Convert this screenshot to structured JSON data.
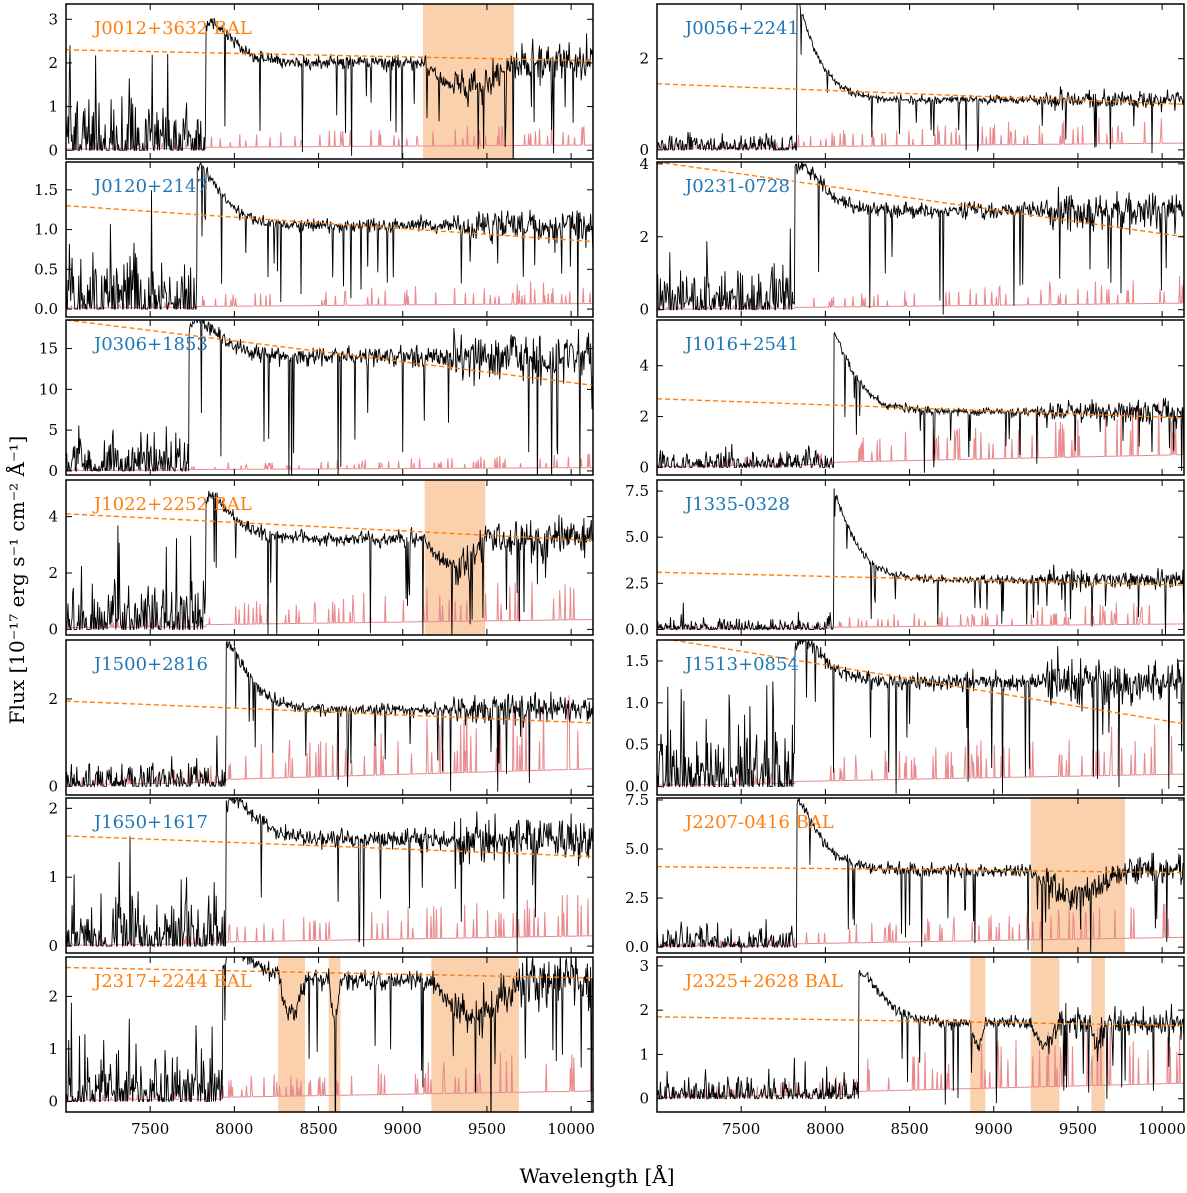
{
  "figure": {
    "xlabel": "Wavelength [Å]",
    "ylabel": "Flux [10⁻¹⁷ erg s⁻¹ cm⁻² Å⁻¹]"
  },
  "colors": {
    "spectrum": "#000000",
    "error": "#e8898d",
    "continuum": "#ff7f0e",
    "bal_region": "#fbd0ad",
    "label_bal": "#ff7f0e",
    "label_normal": "#1f77b4"
  },
  "chart_data": [
    {
      "type": "line",
      "title": "J0012+3632 BAL",
      "bal": true,
      "xlim": [
        7000,
        10130
      ],
      "ylim": [
        -0.2,
        3.35
      ],
      "yticks": [
        "0",
        "1",
        "2",
        "3"
      ],
      "xticks": [],
      "lya": 7830,
      "peak": 2.8,
      "cont": [
        2.3,
        2.05
      ],
      "plateau": 2.0,
      "lowNoise": 1.1,
      "err": [
        0.05,
        0.12
      ],
      "bal_regions": [
        [
          9120,
          9660
        ]
      ]
    },
    {
      "type": "line",
      "title": "J0056+2241",
      "bal": false,
      "xlim": [
        7000,
        10130
      ],
      "ylim": [
        -0.2,
        3.2
      ],
      "yticks": [
        "0",
        "2"
      ],
      "xticks": [],
      "lya": 7830,
      "peak": 3.4,
      "cont": [
        1.45,
        1.0
      ],
      "plateau": 1.1,
      "lowNoise": 0.3,
      "err": [
        0.04,
        0.15
      ],
      "bal_regions": []
    },
    {
      "type": "line",
      "title": "J0120+2147",
      "bal": false,
      "xlim": [
        7000,
        10130
      ],
      "ylim": [
        -0.1,
        1.85
      ],
      "yticks": [
        "0.0",
        "0.5",
        "1.0",
        "1.5"
      ],
      "xticks": [],
      "lya": 7780,
      "peak": 1.8,
      "cont": [
        1.3,
        0.85
      ],
      "plateau": 1.05,
      "lowNoise": 0.6,
      "err": [
        0.02,
        0.07
      ],
      "bal_regions": []
    },
    {
      "type": "line",
      "title": "J0231-0728",
      "bal": false,
      "xlim": [
        7000,
        10130
      ],
      "ylim": [
        -0.2,
        4.05
      ],
      "yticks": [
        "0",
        "2",
        "4"
      ],
      "xticks": [],
      "lya": 7820,
      "peak": 3.8,
      "cont": [
        4.05,
        2.0
      ],
      "plateau": 2.7,
      "lowNoise": 1.0,
      "err": [
        0.02,
        0.18
      ],
      "bal_regions": []
    },
    {
      "type": "line",
      "title": "J0306+1853",
      "bal": false,
      "xlim": [
        7000,
        10130
      ],
      "ylim": [
        -0.5,
        18.5
      ],
      "yticks": [
        "0",
        "5",
        "10",
        "15"
      ],
      "xticks": [],
      "lya": 7730,
      "peak": 17.0,
      "cont": [
        18.5,
        10.5
      ],
      "plateau": 14.0,
      "lowNoise": 4.0,
      "err": [
        0.1,
        0.4
      ],
      "bal_regions": []
    },
    {
      "type": "line",
      "title": "J1016+2541",
      "bal": false,
      "xlim": [
        7000,
        10130
      ],
      "ylim": [
        -0.3,
        5.8
      ],
      "yticks": [
        "0",
        "2",
        "4"
      ],
      "xticks": [],
      "lya": 8050,
      "peak": 5.3,
      "cont": [
        2.7,
        1.95
      ],
      "plateau": 2.2,
      "lowNoise": 0.6,
      "err": [
        0.05,
        0.5
      ],
      "bal_regions": []
    },
    {
      "type": "line",
      "title": "J1022+2252 BAL",
      "bal": true,
      "xlim": [
        7000,
        10130
      ],
      "ylim": [
        -0.2,
        5.3
      ],
      "yticks": [
        "0",
        "2",
        "4"
      ],
      "xticks": [],
      "lya": 7830,
      "peak": 4.6,
      "cont": [
        4.1,
        3.15
      ],
      "plateau": 3.2,
      "lowNoise": 1.5,
      "err": [
        0.1,
        0.35
      ],
      "bal_regions": [
        [
          9130,
          9490
        ]
      ]
    },
    {
      "type": "line",
      "title": "J1335-0328",
      "bal": false,
      "xlim": [
        7000,
        10130
      ],
      "ylim": [
        -0.3,
        8.1
      ],
      "yticks": [
        "0.0",
        "2.5",
        "5.0",
        "7.5"
      ],
      "xticks": [],
      "lya": 8050,
      "peak": 7.6,
      "cont": [
        3.1,
        2.4
      ],
      "plateau": 2.7,
      "lowNoise": 0.5,
      "err": [
        0.03,
        0.3
      ],
      "bal_regions": []
    },
    {
      "type": "line",
      "title": "J1500+2816",
      "bal": false,
      "xlim": [
        7000,
        10130
      ],
      "ylim": [
        -0.2,
        3.35
      ],
      "yticks": [
        "0",
        "2"
      ],
      "xticks": [],
      "lya": 7950,
      "peak": 3.3,
      "cont": [
        1.95,
        1.45
      ],
      "plateau": 1.75,
      "lowNoise": 0.5,
      "err": [
        0.05,
        0.4
      ],
      "bal_regions": []
    },
    {
      "type": "line",
      "title": "J1513+0854",
      "bal": false,
      "xlim": [
        7000,
        10130
      ],
      "ylim": [
        -0.1,
        1.75
      ],
      "yticks": [
        "0.0",
        "0.5",
        "1.0",
        "1.5"
      ],
      "xticks": [],
      "lya": 7820,
      "peak": 1.65,
      "cont": [
        1.78,
        0.75
      ],
      "plateau": 1.25,
      "lowNoise": 0.65,
      "err": [
        0.03,
        0.15
      ],
      "bal_regions": []
    },
    {
      "type": "line",
      "title": "J1650+1617",
      "bal": false,
      "xlim": [
        7000,
        10130
      ],
      "ylim": [
        -0.1,
        2.15
      ],
      "yticks": [
        "0",
        "1",
        "2"
      ],
      "xticks": [],
      "lya": 7950,
      "peak": 2.0,
      "cont": [
        1.6,
        1.3
      ],
      "plateau": 1.55,
      "lowNoise": 0.6,
      "err": [
        0.02,
        0.15
      ],
      "bal_regions": []
    },
    {
      "type": "line",
      "title": "J2207-0416 BAL",
      "bal": true,
      "xlim": [
        7000,
        10130
      ],
      "ylim": [
        -0.3,
        7.6
      ],
      "yticks": [
        "0.0",
        "2.5",
        "5.0",
        "7.5"
      ],
      "xticks": [],
      "lya": 7830,
      "peak": 7.5,
      "cont": [
        4.1,
        3.8
      ],
      "plateau": 3.9,
      "lowNoise": 1.0,
      "err": [
        0.05,
        0.5
      ],
      "bal_regions": [
        [
          9220,
          9780
        ]
      ]
    },
    {
      "type": "line",
      "title": "J2317+2244 BAL",
      "bal": true,
      "xlim": [
        7000,
        10130
      ],
      "ylim": [
        -0.2,
        2.75
      ],
      "yticks": [
        "0",
        "1",
        "2"
      ],
      "xticks": [
        "7500",
        "8000",
        "8500",
        "9000",
        "9500",
        "10000"
      ],
      "lya": 7930,
      "peak": 2.5,
      "cont": [
        2.55,
        2.35
      ],
      "plateau": 2.3,
      "lowNoise": 0.8,
      "err": [
        0.03,
        0.2
      ],
      "bal_regions": [
        [
          8260,
          8420
        ],
        [
          8560,
          8630
        ],
        [
          9170,
          9690
        ]
      ]
    },
    {
      "type": "line",
      "title": "J2325+2628 BAL",
      "bal": true,
      "xlim": [
        7000,
        10130
      ],
      "ylim": [
        -0.3,
        3.2
      ],
      "yticks": [
        "0",
        "1",
        "2",
        "3"
      ],
      "xticks": [
        "7500",
        "8000",
        "8500",
        "9000",
        "9500",
        "10000"
      ],
      "lya": 8200,
      "peak": 2.8,
      "cont": [
        1.85,
        1.65
      ],
      "plateau": 1.7,
      "lowNoise": 0.4,
      "err": [
        0.05,
        0.35
      ],
      "bal_regions": [
        [
          8860,
          8950
        ],
        [
          9220,
          9390
        ],
        [
          9580,
          9660
        ]
      ]
    }
  ]
}
